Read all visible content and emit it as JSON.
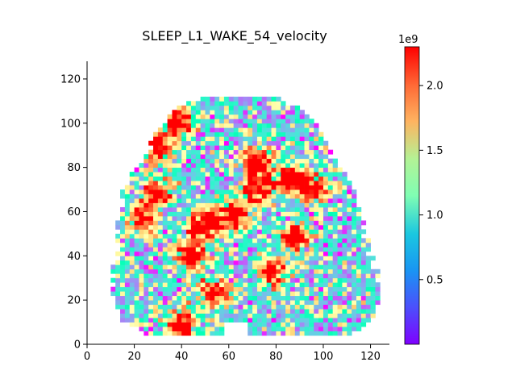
{
  "chart_data": {
    "type": "heatmap",
    "title": "SLEEP_L1_WAKE_54_velocity",
    "xlabel": "",
    "ylabel": "",
    "xlim": [
      0,
      128
    ],
    "ylim": [
      0,
      128
    ],
    "x_ticks": [
      0,
      20,
      40,
      60,
      80,
      100,
      120
    ],
    "y_ticks": [
      0,
      20,
      40,
      60,
      80,
      100,
      120
    ],
    "grid": false,
    "colormap": "rainbow",
    "colorbar": {
      "min": 0.0,
      "max": 2.3,
      "ticks": [
        0.5,
        1.0,
        1.5,
        2.0
      ],
      "tick_labels": [
        "0.5",
        "1.0",
        "1.5",
        "2.0"
      ],
      "offset_label": "1e9"
    },
    "high_value_regions": [
      {
        "x": 50,
        "y": 53,
        "value": 2.3
      },
      {
        "x": 30,
        "y": 88,
        "value": 2.3
      },
      {
        "x": 62,
        "y": 58,
        "value": 2.3
      },
      {
        "x": 72,
        "y": 70,
        "value": 2.2
      },
      {
        "x": 86,
        "y": 74,
        "value": 2.2
      },
      {
        "x": 88,
        "y": 48,
        "value": 2.2
      },
      {
        "x": 38,
        "y": 100,
        "value": 2.2
      },
      {
        "x": 44,
        "y": 40,
        "value": 2.1
      },
      {
        "x": 72,
        "y": 82,
        "value": 2.0
      },
      {
        "x": 24,
        "y": 56,
        "value": 2.0
      },
      {
        "x": 78,
        "y": 32,
        "value": 2.0
      },
      {
        "x": 40,
        "y": 8,
        "value": 2.2
      },
      {
        "x": 54,
        "y": 22,
        "value": 1.9
      },
      {
        "x": 96,
        "y": 70,
        "value": 1.8
      },
      {
        "x": 30,
        "y": 68,
        "value": 1.8
      }
    ]
  }
}
